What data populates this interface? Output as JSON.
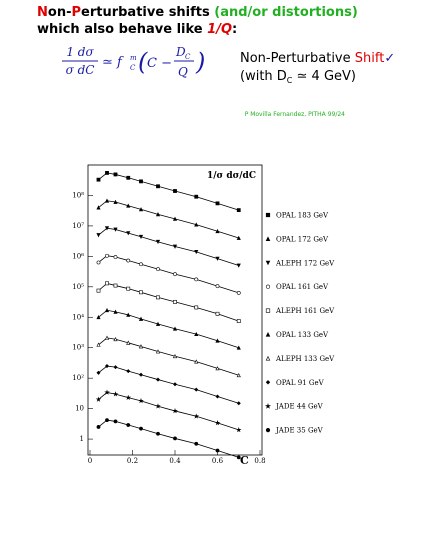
{
  "header": {
    "line1": [
      "N",
      "on-",
      "P",
      "erturbative shifts ",
      "(and/or distortions)"
    ],
    "line2": [
      "which also behave like ",
      "1/Q",
      ":"
    ]
  },
  "formula": {
    "lhs_num": "1 dσ",
    "lhs_den": "σ dC",
    "approx": "≃ f",
    "f_sup": "m",
    "f_sub": "C",
    "paren_open": "(",
    "inner": "C −",
    "frac_num": "D",
    "frac_num_sub": "C",
    "frac_den": "Q",
    "paren_close": ")"
  },
  "note": {
    "line1": [
      "Non-Perturbative ",
      "Shift",
      "✓"
    ],
    "line2": [
      "(with D",
      "C",
      " ≃ 4 GeV)"
    ]
  },
  "credit": "P Movilla Fernandez, PITHA 99/24",
  "chart_data": {
    "type": "scatter",
    "ylabel": "1/σ dσ/dC",
    "xlabel": "C",
    "log": true,
    "xlim": [
      0,
      0.8
    ],
    "xticks": [
      0,
      0.2,
      0.4,
      0.6,
      0.8
    ],
    "ylim": [
      0.3,
      1000000000
    ],
    "yticks": [
      1,
      10,
      {
        "value": 100,
        "label": "10²"
      },
      {
        "value": 1000,
        "label": "10³"
      },
      {
        "value": 10000,
        "label": "10⁴"
      },
      {
        "value": 100000,
        "label": "10⁵"
      },
      {
        "value": 1000000,
        "label": "10⁶"
      },
      {
        "value": 10000000,
        "label": "10⁷"
      },
      {
        "value": 100000000,
        "label": "10⁸"
      }
    ],
    "x": [
      0.04,
      0.08,
      0.12,
      0.18,
      0.24,
      0.32,
      0.4,
      0.5,
      0.6,
      0.7
    ],
    "series": [
      {
        "name": "OPAL 183 GeV",
        "color": "#000000",
        "marker": "square",
        "values": [
          330000000.0,
          550000000.0,
          490000000.0,
          380000000.0,
          290000000.0,
          200000000.0,
          140000000.0,
          91000000.0,
          55000000.0,
          33000000.0
        ]
      },
      {
        "name": "OPAL 172 GeV",
        "color": "#000000",
        "marker": "triangle",
        "values": [
          40000000.0,
          67000000.0,
          61000000.0,
          46000000.0,
          35000000.0,
          24000000.0,
          17000000.0,
          11000000.0,
          6700000.0,
          4000000.0
        ]
      },
      {
        "name": "ALEPH 172 GeV",
        "color": "#000000",
        "marker": "triangle-down",
        "values": [
          5000000.0,
          8400000.0,
          7600000.0,
          5800000.0,
          4400000.0,
          3000000.0,
          2100000.0,
          1400000.0,
          840000.0,
          500000.0
        ]
      },
      {
        "name": "OPAL 161 GeV",
        "color": "#000000",
        "marker": "circle-open",
        "values": [
          630000.0,
          1050000.0,
          950000.0,
          730000.0,
          550000.0,
          380000.0,
          260000.0,
          175000.0,
          105000.0,
          63000.0
        ]
      },
      {
        "name": "ALEPH 161 GeV",
        "color": "#000000",
        "marker": "square-open",
        "values": [
          75000.0,
          130000.0,
          110000.0,
          87000.0,
          66000.0,
          45000.0,
          32000.0,
          21000.0,
          13000.0,
          7500
        ]
      },
      {
        "name": "OPAL 133 GeV",
        "color": "#000000",
        "marker": "triangle",
        "values": [
          10000.0,
          17000.0,
          15000.0,
          12000.0,
          8800,
          6000,
          4200,
          2800,
          1700,
          1000
        ]
      },
      {
        "name": "ALEPH 133 GeV",
        "color": "#000000",
        "marker": "triangle-open",
        "values": [
          1250,
          2100,
          1900,
          1450,
          1100,
          750,
          525,
          350,
          210,
          125
        ]
      },
      {
        "name": "OPAL 91 GeV",
        "color": "#000000",
        "marker": "diamond",
        "values": [
          150,
          250,
          230,
          170,
          130,
          90,
          63,
          42,
          25,
          15
        ]
      },
      {
        "name": "JADE 44 GeV",
        "color": "#000000",
        "marker": "star",
        "values": [
          20,
          34,
          30,
          23,
          18,
          12,
          8.4,
          5.6,
          3.4,
          2
        ]
      },
      {
        "name": "JADE 35 GeV",
        "color": "#000000",
        "marker": "circle",
        "values": [
          2.5,
          4.2,
          3.8,
          2.9,
          2.2,
          1.5,
          1.05,
          0.7,
          0.42,
          0.25
        ]
      }
    ]
  }
}
